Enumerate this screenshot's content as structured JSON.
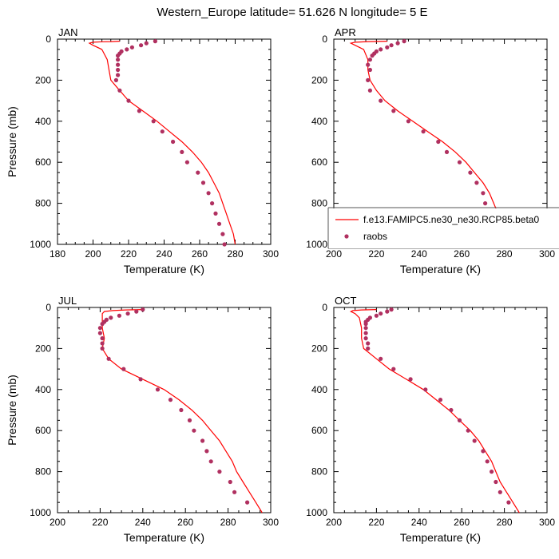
{
  "title": "Western_Europe  latitude= 51.626 N longitude= 5 E",
  "colors": {
    "model": "#ff0000",
    "obs": "#b03060"
  },
  "legend": {
    "model_label": "f.e13.FAMIPC5.ne30_ne30.RCP85.beta0",
    "obs_label": "raobs",
    "panel": "APR"
  },
  "chart_data": [
    {
      "type": "line",
      "panel_title": "JAN",
      "xlabel": "Temperature (K)",
      "ylabel": "Pressure (mb)",
      "xlim": [
        180,
        300
      ],
      "ylim": [
        1000,
        0
      ],
      "xticks": [
        180,
        200,
        220,
        240,
        260,
        280,
        300
      ],
      "yticks": [
        0,
        200,
        400,
        600,
        800,
        1000
      ],
      "series": [
        {
          "name": "f.e13.FAMIPC5.ne30_ne30.RCP85.beta0",
          "kind": "line",
          "points": [
            [
              215,
              10
            ],
            [
              210,
              12
            ],
            [
              205,
              13
            ],
            [
              200,
              15
            ],
            [
              198,
              20
            ],
            [
              200,
              30
            ],
            [
              205,
              50
            ],
            [
              208,
              100
            ],
            [
              209,
              150
            ],
            [
              210,
              200
            ],
            [
              214,
              240
            ],
            [
              220,
              300
            ],
            [
              228,
              350
            ],
            [
              236,
              400
            ],
            [
              243,
              450
            ],
            [
              250,
              500
            ],
            [
              256,
              550
            ],
            [
              261,
              600
            ],
            [
              265,
              650
            ],
            [
              268,
              700
            ],
            [
              271,
              750
            ],
            [
              273,
              800
            ],
            [
              275,
              850
            ],
            [
              277,
              900
            ],
            [
              279,
              950
            ],
            [
              280,
              1000
            ]
          ]
        },
        {
          "name": "raobs",
          "kind": "scatter",
          "points": [
            [
              235,
              10
            ],
            [
              230,
              20
            ],
            [
              227,
              30
            ],
            [
              222,
              40
            ],
            [
              219,
              50
            ],
            [
              216,
              60
            ],
            [
              215,
              70
            ],
            [
              214,
              80
            ],
            [
              214,
              100
            ],
            [
              214,
              125
            ],
            [
              214,
              150
            ],
            [
              214,
              175
            ],
            [
              213,
              200
            ],
            [
              215,
              250
            ],
            [
              220,
              300
            ],
            [
              226,
              350
            ],
            [
              234,
              400
            ],
            [
              239,
              450
            ],
            [
              245,
              500
            ],
            [
              250,
              550
            ],
            [
              253,
              600
            ],
            [
              259,
              650
            ],
            [
              262,
              700
            ],
            [
              265,
              750
            ],
            [
              267,
              800
            ],
            [
              269,
              850
            ],
            [
              271,
              900
            ],
            [
              273,
              950
            ],
            [
              274,
              1000
            ]
          ]
        }
      ]
    },
    {
      "type": "line",
      "panel_title": "APR",
      "xlabel": "Temperature (K)",
      "ylabel": "",
      "xlim": [
        200,
        300
      ],
      "ylim": [
        1000,
        0
      ],
      "xticks": [
        200,
        220,
        240,
        260,
        280,
        300
      ],
      "yticks": [
        0,
        200,
        400,
        600,
        800,
        1000
      ],
      "series": [
        {
          "name": "f.e13.FAMIPC5.ne30_ne30.RCP85.beta0",
          "kind": "line",
          "points": [
            [
              225,
              10
            ],
            [
              216,
              12
            ],
            [
              210,
              15
            ],
            [
              208,
              20
            ],
            [
              210,
              30
            ],
            [
              214,
              50
            ],
            [
              216,
              100
            ],
            [
              216,
              150
            ],
            [
              217,
              200
            ],
            [
              220,
              250
            ],
            [
              224,
              300
            ],
            [
              230,
              350
            ],
            [
              237,
              400
            ],
            [
              244,
              450
            ],
            [
              251,
              500
            ],
            [
              257,
              550
            ],
            [
              262,
              600
            ],
            [
              266,
              650
            ],
            [
              270,
              700
            ],
            [
              273,
              750
            ],
            [
              275,
              800
            ],
            [
              277,
              850
            ],
            [
              279,
              900
            ],
            [
              282,
              950
            ],
            [
              284,
              1000
            ]
          ]
        },
        {
          "name": "raobs",
          "kind": "scatter",
          "points": [
            [
              233,
              10
            ],
            [
              230,
              20
            ],
            [
              227,
              30
            ],
            [
              225,
              40
            ],
            [
              222,
              50
            ],
            [
              220,
              60
            ],
            [
              219,
              70
            ],
            [
              218,
              80
            ],
            [
              217,
              100
            ],
            [
              216,
              125
            ],
            [
              217,
              150
            ],
            [
              216,
              200
            ],
            [
              217,
              250
            ],
            [
              222,
              300
            ],
            [
              228,
              350
            ],
            [
              235,
              400
            ],
            [
              242,
              450
            ],
            [
              249,
              500
            ],
            [
              253,
              550
            ],
            [
              259,
              600
            ],
            [
              264,
              650
            ],
            [
              267,
              700
            ],
            [
              270,
              750
            ],
            [
              271,
              800
            ],
            [
              273,
              850
            ],
            [
              276,
              900
            ],
            [
              278,
              950
            ]
          ]
        }
      ]
    },
    {
      "type": "line",
      "panel_title": "JUL",
      "xlabel": "Temperature (K)",
      "ylabel": "Pressure (mb)",
      "xlim": [
        200,
        300
      ],
      "ylim": [
        1000,
        0
      ],
      "xticks": [
        200,
        220,
        240,
        260,
        280,
        300
      ],
      "yticks": [
        0,
        200,
        400,
        600,
        800,
        1000
      ],
      "series": [
        {
          "name": "f.e13.FAMIPC5.ne30_ne30.RCP85.beta0",
          "kind": "line",
          "points": [
            [
              240,
              10
            ],
            [
              232,
              12
            ],
            [
              226,
              15
            ],
            [
              222,
              20
            ],
            [
              221,
              30
            ],
            [
              221,
              50
            ],
            [
              221,
              100
            ],
            [
              222,
              150
            ],
            [
              221,
              200
            ],
            [
              224,
              250
            ],
            [
              230,
              300
            ],
            [
              240,
              350
            ],
            [
              250,
              400
            ],
            [
              257,
              450
            ],
            [
              263,
              500
            ],
            [
              268,
              550
            ],
            [
              272,
              600
            ],
            [
              276,
              650
            ],
            [
              279,
              700
            ],
            [
              282,
              750
            ],
            [
              284,
              800
            ],
            [
              287,
              850
            ],
            [
              290,
              900
            ],
            [
              293,
              950
            ],
            [
              296,
              1000
            ]
          ]
        },
        {
          "name": "raobs",
          "kind": "scatter",
          "points": [
            [
              240,
              10
            ],
            [
              237,
              20
            ],
            [
              233,
              30
            ],
            [
              229,
              40
            ],
            [
              225,
              50
            ],
            [
              223,
              60
            ],
            [
              222,
              70
            ],
            [
              221,
              80
            ],
            [
              220,
              100
            ],
            [
              220,
              125
            ],
            [
              221,
              150
            ],
            [
              221,
              175
            ],
            [
              221,
              200
            ],
            [
              224,
              250
            ],
            [
              231,
              300
            ],
            [
              239,
              350
            ],
            [
              247,
              400
            ],
            [
              253,
              450
            ],
            [
              258,
              500
            ],
            [
              262,
              550
            ],
            [
              264,
              600
            ],
            [
              268,
              650
            ],
            [
              270,
              700
            ],
            [
              272,
              750
            ],
            [
              276,
              800
            ],
            [
              281,
              850
            ],
            [
              283,
              900
            ],
            [
              289,
              950
            ]
          ]
        }
      ]
    },
    {
      "type": "line",
      "panel_title": "OCT",
      "xlabel": "Temperature (K)",
      "ylabel": "",
      "xlim": [
        200,
        300
      ],
      "ylim": [
        1000,
        0
      ],
      "xticks": [
        200,
        220,
        240,
        260,
        280,
        300
      ],
      "yticks": [
        0,
        200,
        400,
        600,
        800,
        1000
      ],
      "series": [
        {
          "name": "f.e13.FAMIPC5.ne30_ne30.RCP85.beta0",
          "kind": "line",
          "points": [
            [
              220,
              10
            ],
            [
              213,
              12
            ],
            [
              209,
              15
            ],
            [
              208,
              20
            ],
            [
              210,
              30
            ],
            [
              212,
              50
            ],
            [
              213,
              100
            ],
            [
              213,
              150
            ],
            [
              214,
              200
            ],
            [
              220,
              250
            ],
            [
              226,
              300
            ],
            [
              234,
              350
            ],
            [
              242,
              400
            ],
            [
              248,
              450
            ],
            [
              254,
              500
            ],
            [
              259,
              550
            ],
            [
              264,
              600
            ],
            [
              268,
              650
            ],
            [
              271,
              700
            ],
            [
              274,
              750
            ],
            [
              276,
              800
            ],
            [
              278,
              850
            ],
            [
              281,
              900
            ],
            [
              284,
              950
            ],
            [
              287,
              1000
            ]
          ]
        },
        {
          "name": "raobs",
          "kind": "scatter",
          "points": [
            [
              227,
              10
            ],
            [
              225,
              20
            ],
            [
              222,
              30
            ],
            [
              220,
              40
            ],
            [
              217,
              50
            ],
            [
              216,
              60
            ],
            [
              215,
              70
            ],
            [
              215,
              80
            ],
            [
              215,
              100
            ],
            [
              215,
              125
            ],
            [
              215,
              150
            ],
            [
              216,
              175
            ],
            [
              216,
              200
            ],
            [
              222,
              250
            ],
            [
              228,
              300
            ],
            [
              236,
              350
            ],
            [
              243,
              400
            ],
            [
              250,
              450
            ],
            [
              255,
              500
            ],
            [
              259,
              550
            ],
            [
              263,
              600
            ],
            [
              266,
              650
            ],
            [
              270,
              700
            ],
            [
              272,
              750
            ],
            [
              274,
              800
            ],
            [
              276,
              850
            ],
            [
              278,
              900
            ],
            [
              282,
              950
            ]
          ]
        }
      ]
    }
  ]
}
